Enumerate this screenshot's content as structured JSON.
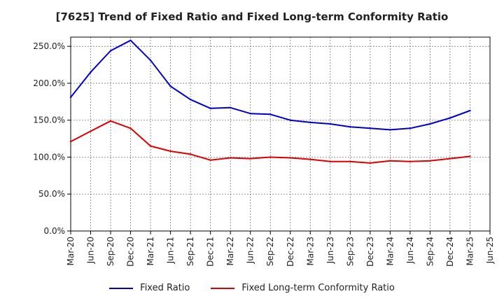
{
  "chart_data": {
    "type": "line",
    "title": "[7625]  Trend of Fixed Ratio and Fixed Long-term Conformity Ratio",
    "xlabel": "",
    "ylabel": "",
    "ylim": [
      0,
      262.5
    ],
    "yticks": [
      0,
      50,
      100,
      150,
      200,
      250
    ],
    "ytick_labels": [
      "0.0%",
      "50.0%",
      "100.0%",
      "150.0%",
      "200.0%",
      "250.0%"
    ],
    "x": [
      "Mar-20",
      "Jun-20",
      "Sep-20",
      "Dec-20",
      "Mar-21",
      "Jun-21",
      "Sep-21",
      "Dec-21",
      "Mar-22",
      "Jun-22",
      "Sep-22",
      "Dec-22",
      "Mar-23",
      "Jun-23",
      "Sep-23",
      "Dec-23",
      "Mar-24",
      "Jun-24",
      "Sep-24",
      "Dec-24",
      "Mar-25",
      "Jun-25"
    ],
    "grid": true,
    "legend_position": "bottom",
    "series": [
      {
        "name": "Fixed Ratio",
        "color": "#0000cc",
        "values": [
          181,
          215,
          244,
          258,
          231,
          196,
          178,
          166,
          167,
          159,
          158,
          150,
          147,
          145,
          141,
          139,
          137,
          139,
          145,
          153,
          163,
          null
        ]
      },
      {
        "name": "Fixed Long-term Conformity Ratio",
        "color": "#dd0000",
        "values": [
          121,
          135,
          149,
          139,
          115,
          108,
          104,
          96,
          99,
          98,
          100,
          99,
          97,
          94,
          94,
          92,
          95,
          94,
          95,
          98,
          101,
          null
        ]
      }
    ]
  }
}
